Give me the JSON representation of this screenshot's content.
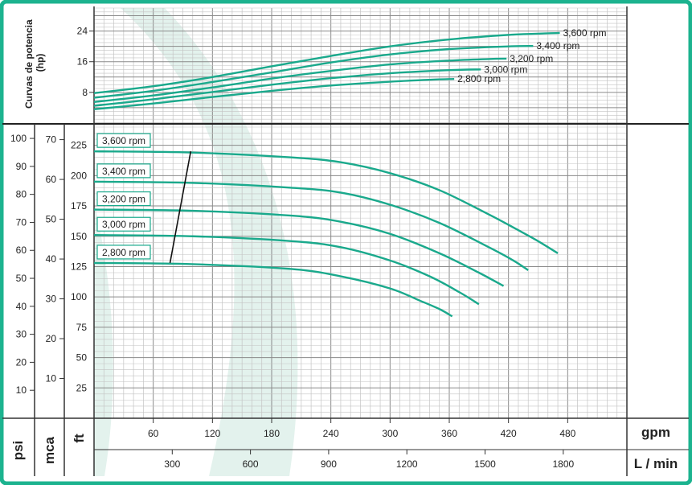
{
  "colors": {
    "border": "#1cb38f",
    "curve": "#1aa98c",
    "grid_major": "#8a8a8a",
    "grid_minor": "#c4c4c4",
    "band": "#dcefe9",
    "frame": "#333333"
  },
  "chart_data": [
    {
      "type": "line",
      "panel": "power",
      "ylabel": "Curvas de potencia\n(hp)",
      "y_ticks": [
        8,
        16,
        24
      ],
      "ylim": [
        0,
        30
      ],
      "x_unit": "gpm",
      "xlim": [
        0,
        540
      ],
      "series": [
        {
          "name": "3,600 rpm",
          "x": [
            0,
            60,
            120,
            180,
            240,
            300,
            360,
            420,
            460,
            472
          ],
          "y": [
            7.8,
            9.6,
            12.0,
            14.8,
            17.5,
            20.0,
            21.8,
            23.0,
            23.4,
            23.5
          ]
        },
        {
          "name": "3,400 rpm",
          "x": [
            0,
            60,
            120,
            180,
            240,
            300,
            360,
            420,
            445
          ],
          "y": [
            6.6,
            8.4,
            10.7,
            13.2,
            15.8,
            17.9,
            19.3,
            20.0,
            20.1
          ]
        },
        {
          "name": "3,200 rpm",
          "x": [
            0,
            60,
            120,
            180,
            240,
            300,
            360,
            400,
            418
          ],
          "y": [
            5.5,
            7.2,
            9.3,
            11.6,
            13.6,
            15.3,
            16.3,
            16.7,
            16.8
          ]
        },
        {
          "name": "3,000 rpm",
          "x": [
            0,
            60,
            120,
            180,
            240,
            300,
            360,
            392
          ],
          "y": [
            4.5,
            6.2,
            8.1,
            10.0,
            11.7,
            13.0,
            13.8,
            14.0
          ]
        },
        {
          "name": "2,800 rpm",
          "x": [
            0,
            60,
            120,
            180,
            240,
            300,
            340,
            365
          ],
          "y": [
            3.6,
            5.1,
            6.8,
            8.4,
            9.8,
            10.8,
            11.3,
            11.5
          ]
        }
      ]
    },
    {
      "type": "line",
      "panel": "head",
      "x_unit": "gpm",
      "x_unit_secondary": "L / min",
      "y_units": [
        "psi",
        "mca",
        "ft"
      ],
      "xlim": [
        0,
        540
      ],
      "x_ticks": [
        60,
        120,
        180,
        240,
        300,
        360,
        420,
        480
      ],
      "x_ticks_secondary": [
        300,
        600,
        900,
        1200,
        1500,
        1800
      ],
      "ylim_ft": [
        0,
        240
      ],
      "ft_ticks": [
        25,
        50,
        75,
        100,
        125,
        150,
        175,
        200,
        225
      ],
      "mca_ticks": [
        10,
        20,
        30,
        40,
        50,
        60,
        70
      ],
      "psi_ticks": [
        10,
        20,
        30,
        40,
        50,
        60,
        70,
        80,
        90,
        100
      ],
      "series": [
        {
          "name": "3,600 rpm",
          "x": [
            0,
            100,
            200,
            250,
            300,
            350,
            400,
            430,
            450,
            470
          ],
          "y": [
            220,
            219,
            215,
            211,
            202,
            188,
            168,
            155,
            146,
            136
          ]
        },
        {
          "name": "3,400 rpm",
          "x": [
            0,
            100,
            200,
            250,
            300,
            350,
            400,
            425,
            440
          ],
          "y": [
            195,
            194,
            190,
            186,
            176,
            161,
            141,
            130,
            122
          ]
        },
        {
          "name": "3,200 rpm",
          "x": [
            0,
            100,
            200,
            250,
            300,
            350,
            390,
            415
          ],
          "y": [
            172,
            171,
            167,
            162,
            152,
            136,
            120,
            109
          ]
        },
        {
          "name": "3,000 rpm",
          "x": [
            0,
            100,
            200,
            250,
            300,
            340,
            370,
            390
          ],
          "y": [
            151,
            150,
            146,
            141,
            130,
            117,
            104,
            94
          ]
        },
        {
          "name": "2,800 rpm",
          "x": [
            0,
            100,
            200,
            250,
            300,
            330,
            350,
            363
          ],
          "y": [
            128,
            127,
            123,
            117,
            107,
            97,
            90,
            84
          ]
        }
      ],
      "limit_line": {
        "x": [
          77,
          98
        ],
        "y": [
          128,
          220
        ]
      }
    }
  ]
}
